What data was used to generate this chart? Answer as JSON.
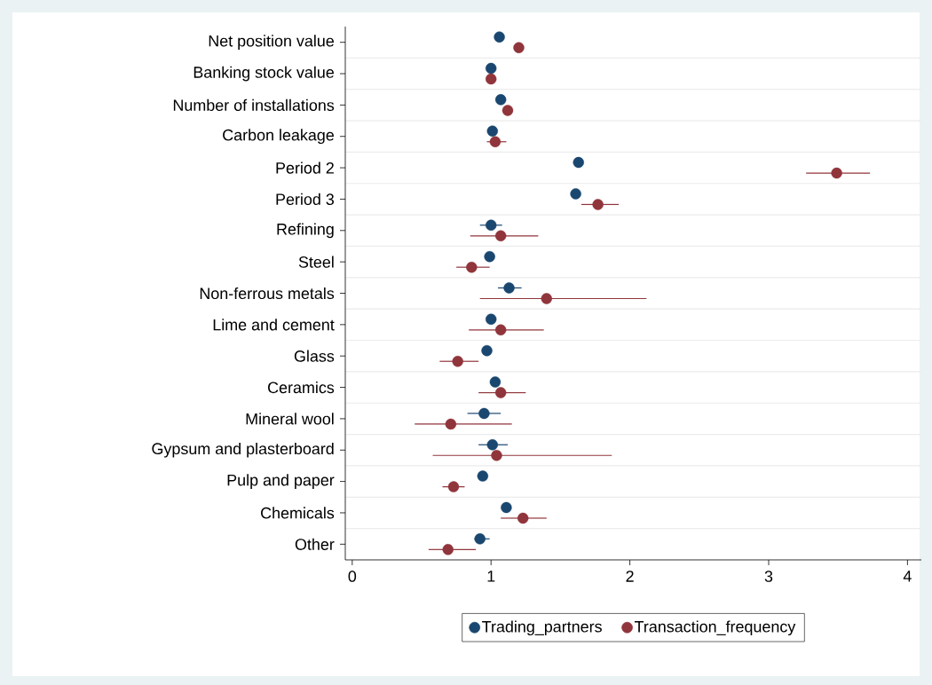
{
  "chart_data": {
    "type": "scatter",
    "categories": [
      "Net position value",
      "Banking stock value",
      "Number of installations",
      "Carbon leakage",
      "Period 2",
      "Period 3",
      "Refining",
      "Steel",
      "Non-ferrous metals",
      "Lime and cement",
      "Glass",
      "Ceramics",
      "Mineral wool",
      "Gypsum and plasterboard",
      "Pulp and paper",
      "Chemicals",
      "Other"
    ],
    "series": [
      {
        "name": "Trading_partners",
        "color": "#1a476f",
        "values": [
          1.06,
          1.0,
          1.07,
          1.01,
          1.63,
          1.61,
          1.0,
          0.99,
          1.13,
          1.0,
          0.97,
          1.03,
          0.95,
          1.01,
          0.94,
          1.11,
          0.92
        ],
        "errors": [
          null,
          null,
          null,
          null,
          null,
          null,
          [
            0.92,
            1.08
          ],
          null,
          [
            1.05,
            1.22
          ],
          null,
          null,
          null,
          [
            0.83,
            1.07
          ],
          [
            0.91,
            1.12
          ],
          null,
          null,
          [
            0.88,
            0.99
          ]
        ]
      },
      {
        "name": "Transaction_frequency",
        "color": "#90353b",
        "values": [
          1.2,
          1.0,
          1.12,
          1.03,
          3.49,
          1.77,
          1.07,
          0.86,
          1.4,
          1.07,
          0.76,
          1.07,
          0.71,
          1.04,
          0.73,
          1.23,
          0.69
        ],
        "errors": [
          null,
          null,
          null,
          [
            0.97,
            1.11
          ],
          [
            3.27,
            3.73
          ],
          [
            1.65,
            1.92
          ],
          [
            0.85,
            1.34
          ],
          [
            0.75,
            0.99
          ],
          [
            0.92,
            2.12
          ],
          [
            0.84,
            1.38
          ],
          [
            0.63,
            0.91
          ],
          [
            0.91,
            1.25
          ],
          [
            0.45,
            1.15
          ],
          [
            0.58,
            1.87
          ],
          [
            0.65,
            0.81
          ],
          [
            1.07,
            1.4
          ],
          [
            0.55,
            0.89
          ]
        ]
      }
    ],
    "xlim": [
      -0.05,
      4.1
    ],
    "xticks": [
      0,
      1,
      2,
      3,
      4
    ],
    "orientation": "horizontal",
    "grid": "y",
    "legend": "bottom"
  }
}
